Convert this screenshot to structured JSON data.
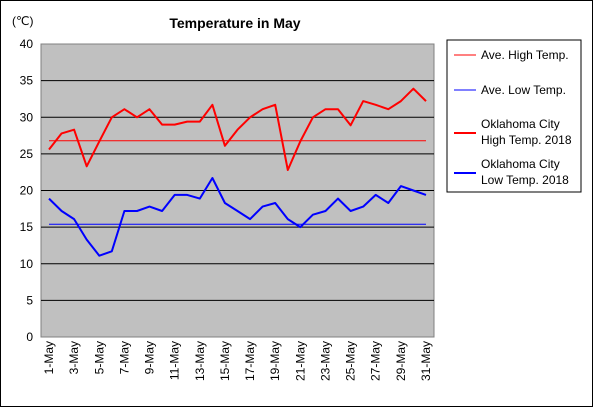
{
  "chart_data": {
    "type": "line",
    "title": "Temperature in May",
    "unit_label": "(℃)",
    "ylim": [
      0,
      40
    ],
    "yticks": [
      0,
      5,
      10,
      15,
      20,
      25,
      30,
      35,
      40
    ],
    "x": [
      1,
      2,
      3,
      4,
      5,
      6,
      7,
      8,
      9,
      10,
      11,
      12,
      13,
      14,
      15,
      16,
      17,
      18,
      19,
      20,
      21,
      22,
      23,
      24,
      25,
      26,
      27,
      28,
      29,
      30,
      31
    ],
    "xtick_labels": [
      "1-May",
      "3-May",
      "5-May",
      "7-May",
      "9-May",
      "11-May",
      "13-May",
      "15-May",
      "17-May",
      "19-May",
      "21-May",
      "23-May",
      "25-May",
      "27-May",
      "29-May",
      "31-May"
    ],
    "grid": true,
    "legend_placement": "right",
    "plot_background": "#c0c0c0",
    "series": [
      {
        "name": "Ave. High Temp.",
        "color": "#ff0000",
        "width": 1,
        "values": [
          26.8,
          26.8,
          26.8,
          26.8,
          26.8,
          26.8,
          26.8,
          26.8,
          26.8,
          26.8,
          26.8,
          26.8,
          26.8,
          26.8,
          26.8,
          26.8,
          26.8,
          26.8,
          26.8,
          26.8,
          26.8,
          26.8,
          26.8,
          26.8,
          26.8,
          26.8,
          26.8,
          26.8,
          26.8,
          26.8,
          26.8
        ]
      },
      {
        "name": "Ave. Low Temp.",
        "color": "#0000ff",
        "width": 1,
        "values": [
          15.4,
          15.4,
          15.4,
          15.4,
          15.4,
          15.4,
          15.4,
          15.4,
          15.4,
          15.4,
          15.4,
          15.4,
          15.4,
          15.4,
          15.4,
          15.4,
          15.4,
          15.4,
          15.4,
          15.4,
          15.4,
          15.4,
          15.4,
          15.4,
          15.4,
          15.4,
          15.4,
          15.4,
          15.4,
          15.4,
          15.4
        ]
      },
      {
        "name": "Oklahoma City High Temp. 2018",
        "legend_lines": [
          "Oklahoma City",
          "High Temp. 2018"
        ],
        "color": "#ff0000",
        "width": 2,
        "values": [
          25.6,
          27.8,
          28.3,
          23.3,
          26.7,
          30.0,
          31.1,
          30.0,
          31.1,
          29.0,
          29.0,
          29.4,
          29.4,
          31.7,
          26.1,
          28.3,
          30.0,
          31.1,
          31.7,
          22.8,
          26.7,
          30.0,
          31.1,
          31.1,
          28.9,
          32.2,
          31.7,
          31.1,
          32.2,
          33.9,
          32.2
        ]
      },
      {
        "name": "Oklahoma City Low Temp. 2018",
        "legend_lines": [
          "Oklahoma City",
          "Low Temp. 2018"
        ],
        "color": "#0000ff",
        "width": 2,
        "values": [
          18.9,
          17.2,
          16.1,
          13.3,
          11.1,
          11.7,
          17.2,
          17.2,
          17.8,
          17.2,
          19.4,
          19.4,
          18.9,
          21.7,
          18.3,
          17.2,
          16.1,
          17.8,
          18.3,
          16.1,
          15.0,
          16.7,
          17.2,
          18.9,
          17.2,
          17.8,
          19.4,
          18.3,
          20.6,
          20.0,
          19.4
        ]
      }
    ]
  }
}
